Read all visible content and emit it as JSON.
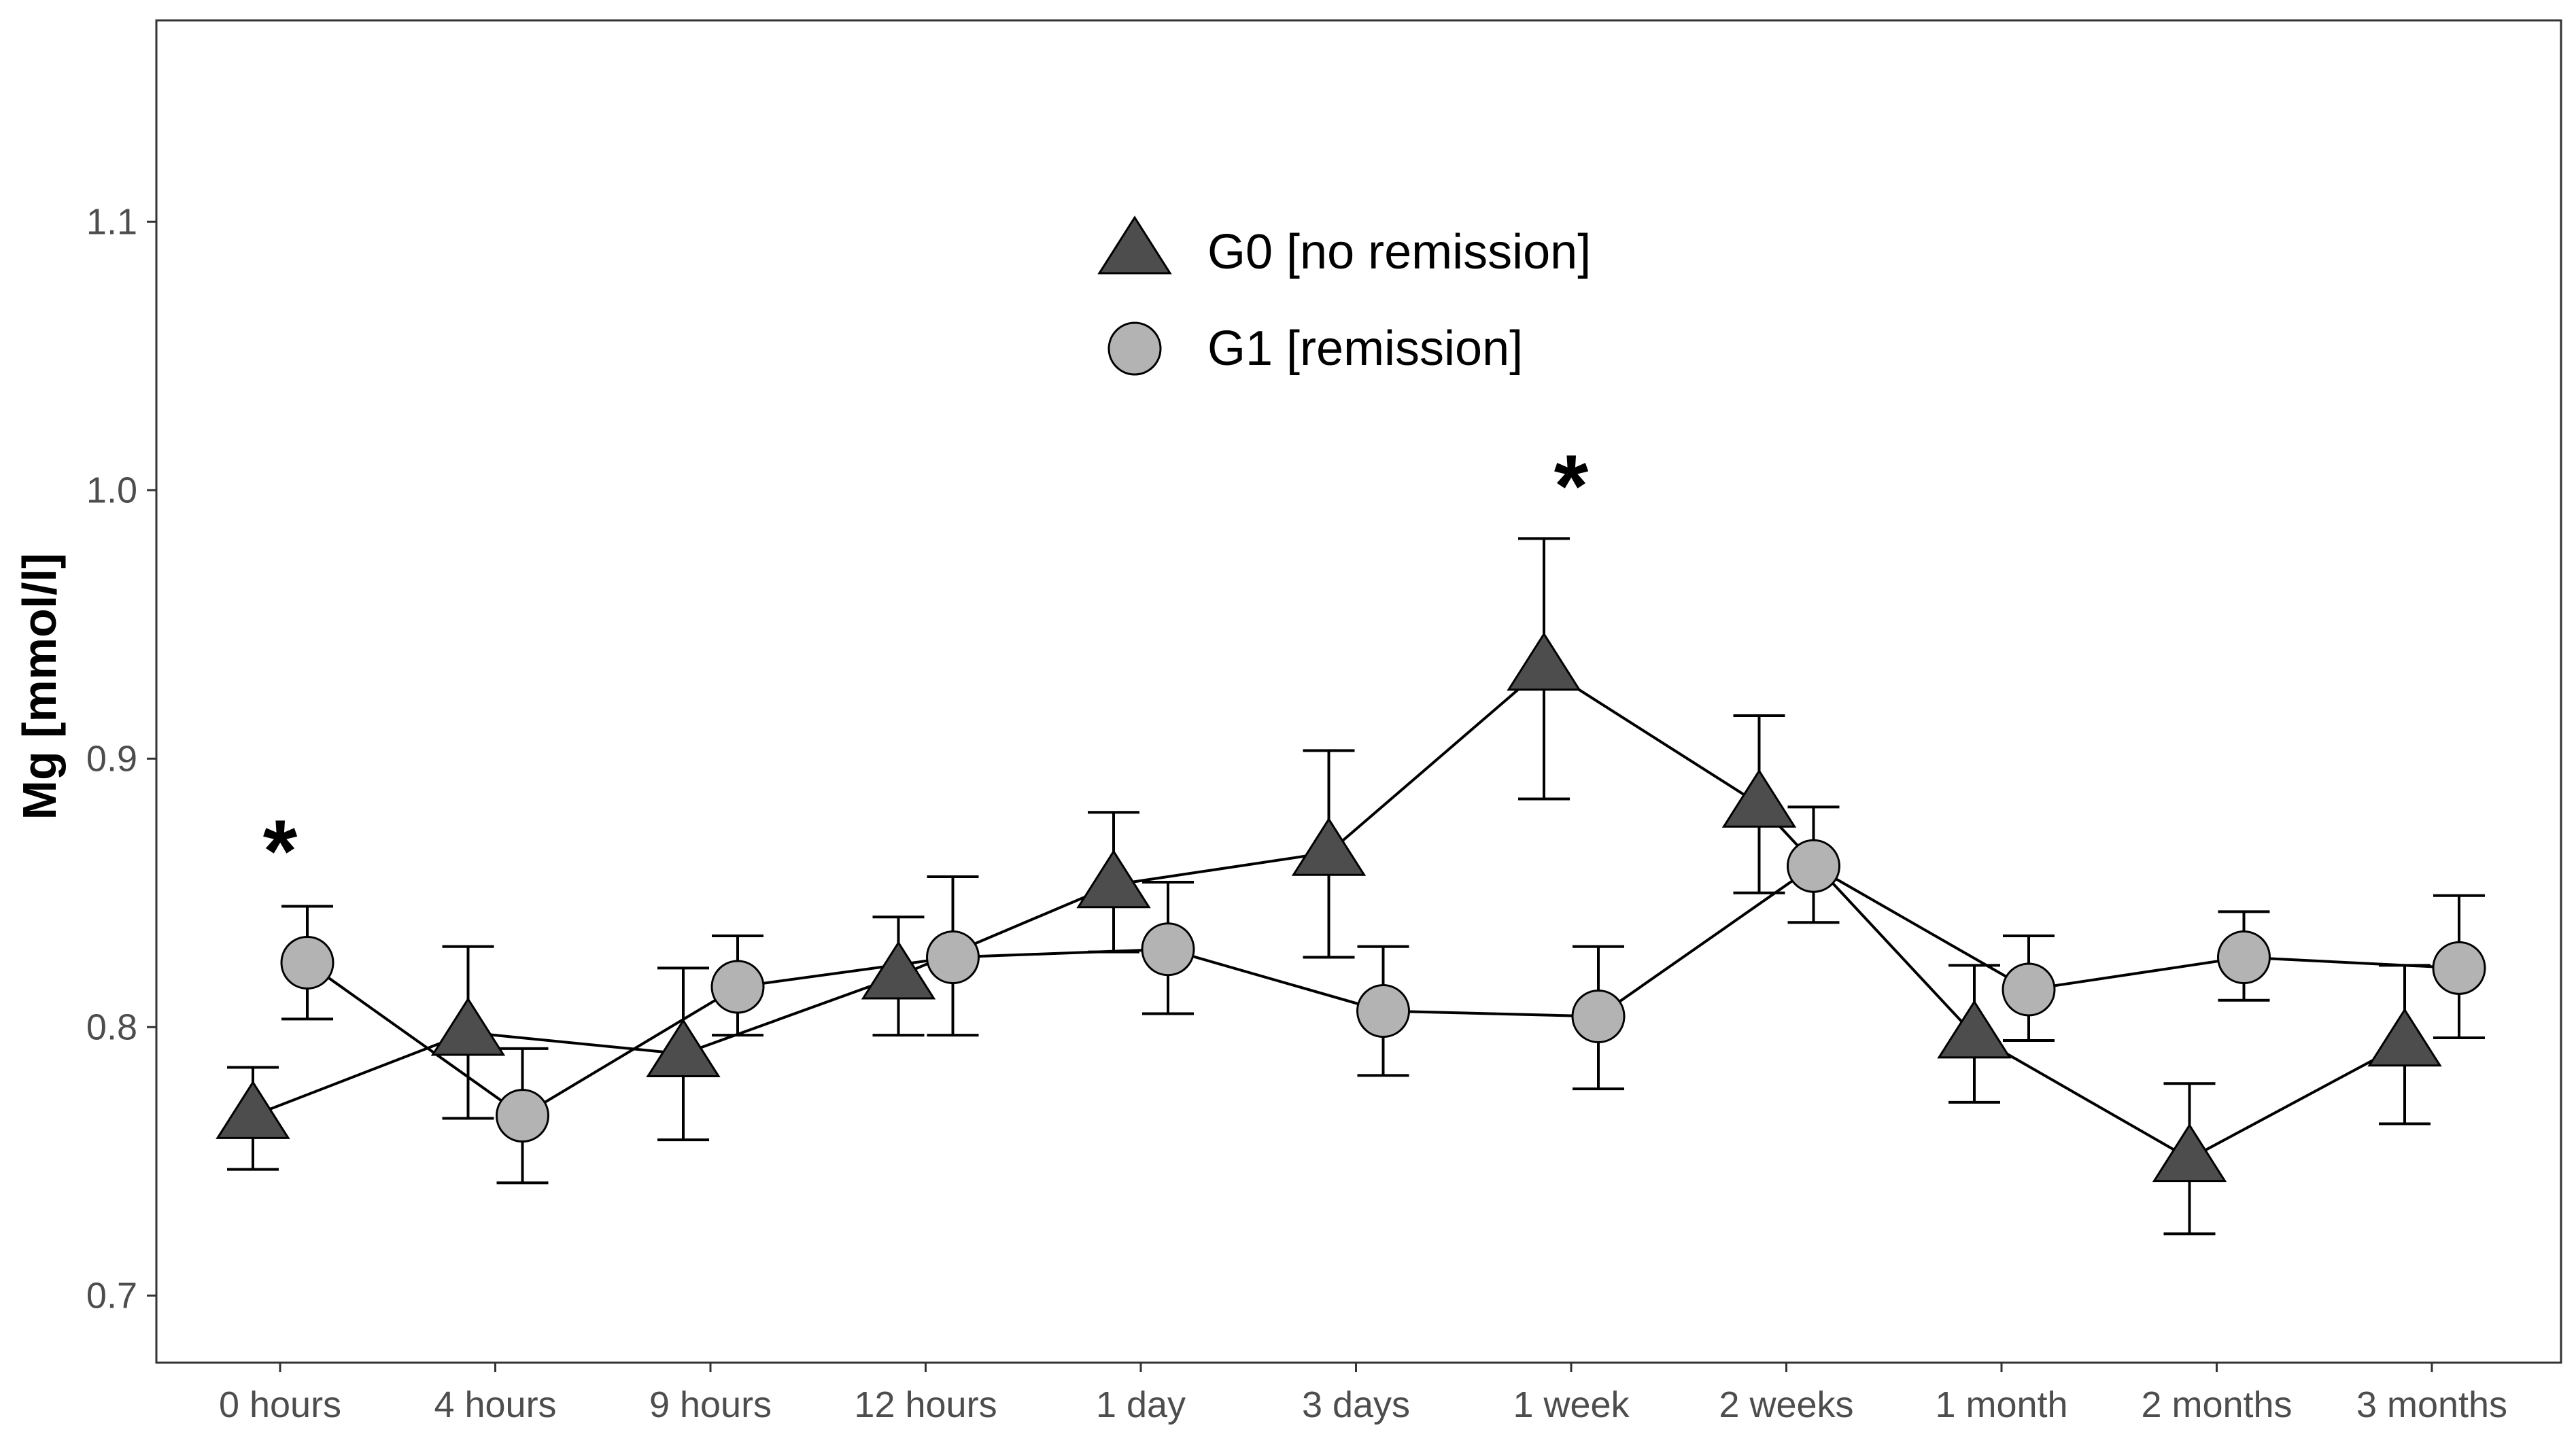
{
  "chart_data": {
    "type": "line",
    "title": "",
    "xlabel": "",
    "ylabel": "Mg [mmol/l]",
    "ylim": [
      0.675,
      1.175
    ],
    "yticks": [
      0.7,
      0.8,
      0.9,
      1.0,
      1.1
    ],
    "ytick_labels": [
      "0.7",
      "0.8",
      "0.9",
      "1.0",
      "1.1"
    ],
    "grid": false,
    "legend_position": "top-center",
    "categories": [
      "0 hours",
      "4 hours",
      "9 hours",
      "12 hours",
      "1 day",
      "3 days",
      "1 week",
      "2 weeks",
      "1 month",
      "2 months",
      "3 months"
    ],
    "series": [
      {
        "name": "G0 [no remission]",
        "marker": "triangle",
        "color": "#4d4d4d",
        "values": [
          0.767,
          0.798,
          0.79,
          0.819,
          0.853,
          0.865,
          0.934,
          0.883,
          0.797,
          0.751,
          0.794
        ],
        "err_low": [
          0.747,
          0.766,
          0.758,
          0.797,
          0.828,
          0.826,
          0.885,
          0.85,
          0.772,
          0.723,
          0.764
        ],
        "err_high": [
          0.785,
          0.83,
          0.822,
          0.841,
          0.88,
          0.903,
          0.982,
          0.916,
          0.823,
          0.779,
          0.823
        ]
      },
      {
        "name": "G1 [remission]",
        "marker": "circle",
        "color": "#b3b3b3",
        "values": [
          0.824,
          0.767,
          0.815,
          0.826,
          0.829,
          0.806,
          0.804,
          0.86,
          0.814,
          0.826,
          0.822
        ],
        "err_low": [
          0.803,
          0.742,
          0.797,
          0.797,
          0.805,
          0.782,
          0.777,
          0.839,
          0.795,
          0.81,
          0.796
        ],
        "err_high": [
          0.845,
          0.792,
          0.834,
          0.856,
          0.854,
          0.83,
          0.83,
          0.882,
          0.834,
          0.843,
          0.849
        ]
      }
    ],
    "annotations": [
      {
        "text": "*",
        "category": "0 hours",
        "y": 0.872
      },
      {
        "text": "*",
        "category": "1 week",
        "y": 1.008
      }
    ]
  }
}
